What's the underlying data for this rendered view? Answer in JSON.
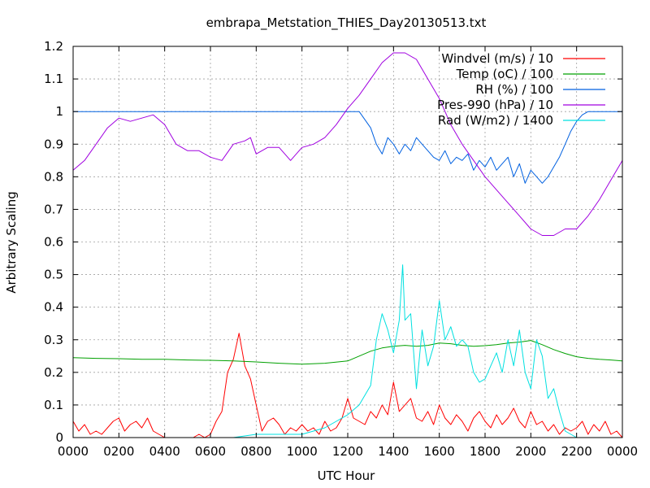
{
  "chart_data": {
    "type": "line",
    "title": "embrapa_Metstation_THIES_Day20130513.txt",
    "xlabel": "UTC Hour",
    "ylabel": "Arbitrary Scaling",
    "xlim": [
      0,
      24
    ],
    "ylim": [
      0,
      1.2
    ],
    "grid": true,
    "legend_position": "top-right",
    "x_ticks": [
      0,
      2,
      4,
      6,
      8,
      10,
      12,
      14,
      16,
      18,
      20,
      22,
      24
    ],
    "x_tick_labels": [
      "0000",
      "0200",
      "0400",
      "0600",
      "0800",
      "1000",
      "1200",
      "1400",
      "1600",
      "1800",
      "2000",
      "2200",
      "0000"
    ],
    "y_ticks": [
      0,
      0.1,
      0.2,
      0.3,
      0.4,
      0.5,
      0.6,
      0.7,
      0.8,
      0.9,
      1,
      1.1,
      1.2
    ],
    "y_tick_labels": [
      "0",
      "0.1",
      "0.2",
      "0.3",
      "0.4",
      "0.5",
      "0.6",
      "0.7",
      "0.8",
      "0.9",
      "1",
      "1.1",
      "1.2"
    ],
    "series": [
      {
        "name": "Windvel (m/s) / 10",
        "color": "#ff0000",
        "x": [
          0,
          0.25,
          0.5,
          0.75,
          1,
          1.25,
          1.5,
          1.75,
          2,
          2.25,
          2.5,
          2.75,
          3,
          3.25,
          3.5,
          3.75,
          4,
          4.25,
          4.5,
          4.75,
          5,
          5.25,
          5.5,
          5.75,
          6,
          6.25,
          6.5,
          6.75,
          7,
          7.25,
          7.5,
          7.75,
          8,
          8.25,
          8.5,
          8.75,
          9,
          9.25,
          9.5,
          9.75,
          10,
          10.25,
          10.5,
          10.75,
          11,
          11.25,
          11.5,
          11.75,
          12,
          12.25,
          12.5,
          12.75,
          13,
          13.25,
          13.5,
          13.75,
          14,
          14.25,
          14.5,
          14.75,
          15,
          15.25,
          15.5,
          15.75,
          16,
          16.25,
          16.5,
          16.75,
          17,
          17.25,
          17.5,
          17.75,
          18,
          18.25,
          18.5,
          18.75,
          19,
          19.25,
          19.5,
          19.75,
          20,
          20.25,
          20.5,
          20.75,
          21,
          21.25,
          21.5,
          21.75,
          22,
          22.25,
          22.5,
          22.75,
          23,
          23.25,
          23.5,
          23.75,
          24
        ],
        "y": [
          0.05,
          0.02,
          0.04,
          0.01,
          0.02,
          0.01,
          0.03,
          0.05,
          0.06,
          0.02,
          0.04,
          0.05,
          0.03,
          0.06,
          0.02,
          0.01,
          0,
          0,
          0,
          0,
          0,
          0,
          0.01,
          0,
          0.01,
          0.05,
          0.08,
          0.2,
          0.24,
          0.32,
          0.22,
          0.18,
          0.1,
          0.02,
          0.05,
          0.06,
          0.04,
          0.01,
          0.03,
          0.02,
          0.04,
          0.02,
          0.03,
          0.01,
          0.05,
          0.02,
          0.03,
          0.06,
          0.12,
          0.06,
          0.05,
          0.04,
          0.08,
          0.06,
          0.1,
          0.07,
          0.17,
          0.08,
          0.1,
          0.12,
          0.06,
          0.05,
          0.08,
          0.04,
          0.1,
          0.06,
          0.04,
          0.07,
          0.05,
          0.02,
          0.06,
          0.08,
          0.05,
          0.03,
          0.07,
          0.04,
          0.06,
          0.09,
          0.05,
          0.03,
          0.08,
          0.04,
          0.05,
          0.02,
          0.04,
          0.01,
          0.03,
          0.02,
          0.03,
          0.05,
          0.01,
          0.04,
          0.02,
          0.05,
          0.01,
          0.02,
          0
        ]
      },
      {
        "name": "Temp (oC) / 100",
        "color": "#00a000",
        "x": [
          0,
          1,
          2,
          3,
          4,
          5,
          6,
          7,
          8,
          9,
          10,
          11,
          12,
          12.5,
          13,
          13.5,
          14,
          14.5,
          15,
          15.5,
          16,
          16.5,
          17,
          17.5,
          18,
          18.5,
          19,
          19.5,
          20,
          20.5,
          21,
          21.5,
          22,
          22.5,
          23,
          23.5,
          24
        ],
        "y": [
          0.245,
          0.243,
          0.242,
          0.24,
          0.24,
          0.238,
          0.237,
          0.235,
          0.232,
          0.228,
          0.225,
          0.228,
          0.235,
          0.25,
          0.265,
          0.275,
          0.28,
          0.283,
          0.28,
          0.283,
          0.29,
          0.288,
          0.283,
          0.28,
          0.282,
          0.285,
          0.29,
          0.293,
          0.298,
          0.285,
          0.27,
          0.258,
          0.248,
          0.243,
          0.24,
          0.238,
          0.235
        ]
      },
      {
        "name": "RH (%) / 100",
        "color": "#0060e0",
        "x": [
          0,
          2,
          4,
          6,
          8,
          10,
          12,
          12.5,
          13,
          13.25,
          13.5,
          13.75,
          14,
          14.25,
          14.5,
          14.75,
          15,
          15.25,
          15.5,
          15.75,
          16,
          16.25,
          16.5,
          16.75,
          17,
          17.25,
          17.5,
          17.75,
          18,
          18.25,
          18.5,
          18.75,
          19,
          19.25,
          19.5,
          19.75,
          20,
          20.25,
          20.5,
          20.75,
          21,
          21.25,
          21.5,
          21.75,
          22,
          22.25,
          22.5,
          23,
          24
        ],
        "y": [
          1,
          1,
          1,
          1,
          1,
          1,
          1,
          1,
          0.95,
          0.9,
          0.87,
          0.92,
          0.9,
          0.87,
          0.9,
          0.88,
          0.92,
          0.9,
          0.88,
          0.86,
          0.85,
          0.88,
          0.84,
          0.86,
          0.85,
          0.87,
          0.82,
          0.85,
          0.83,
          0.86,
          0.82,
          0.84,
          0.86,
          0.8,
          0.84,
          0.78,
          0.82,
          0.8,
          0.78,
          0.8,
          0.83,
          0.86,
          0.9,
          0.94,
          0.97,
          0.99,
          1,
          1,
          1
        ]
      },
      {
        "name": "Pres-990 (hPa) / 10",
        "color": "#a000e0",
        "x": [
          0,
          0.5,
          1,
          1.5,
          2,
          2.5,
          3,
          3.5,
          4,
          4.5,
          5,
          5.5,
          6,
          6.5,
          7,
          7.5,
          7.75,
          8,
          8.5,
          9,
          9.5,
          10,
          10.5,
          11,
          11.5,
          12,
          12.5,
          13,
          13.5,
          14,
          14.5,
          15,
          15.5,
          16,
          16.5,
          17,
          17.5,
          18,
          18.5,
          19,
          19.5,
          20,
          20.5,
          21,
          21.5,
          22,
          22.5,
          23,
          23.5,
          24
        ],
        "y": [
          0.82,
          0.85,
          0.9,
          0.95,
          0.98,
          0.97,
          0.98,
          0.99,
          0.96,
          0.9,
          0.88,
          0.88,
          0.86,
          0.85,
          0.9,
          0.91,
          0.92,
          0.87,
          0.89,
          0.89,
          0.85,
          0.89,
          0.9,
          0.92,
          0.96,
          1.01,
          1.05,
          1.1,
          1.15,
          1.18,
          1.18,
          1.16,
          1.1,
          1.04,
          0.96,
          0.9,
          0.85,
          0.8,
          0.76,
          0.72,
          0.68,
          0.64,
          0.62,
          0.62,
          0.64,
          0.64,
          0.68,
          0.73,
          0.79,
          0.85
        ]
      },
      {
        "name": "Rad (W/m2) / 1400",
        "color": "#00e0e0",
        "x": [
          0,
          2,
          4,
          6,
          7,
          8,
          9,
          10,
          10.5,
          11,
          11.5,
          12,
          12.5,
          13,
          13.25,
          13.5,
          13.75,
          14,
          14.25,
          14.4,
          14.5,
          14.75,
          15,
          15.25,
          15.5,
          15.75,
          16,
          16.25,
          16.5,
          16.75,
          17,
          17.25,
          17.5,
          17.75,
          18,
          18.25,
          18.5,
          18.75,
          19,
          19.25,
          19.5,
          19.75,
          20,
          20.25,
          20.5,
          20.75,
          21,
          21.25,
          21.5,
          22,
          24
        ],
        "y": [
          0,
          0,
          0,
          0,
          0,
          0.01,
          0.01,
          0.01,
          0.02,
          0.03,
          0.05,
          0.07,
          0.1,
          0.16,
          0.3,
          0.38,
          0.33,
          0.26,
          0.36,
          0.53,
          0.36,
          0.38,
          0.15,
          0.33,
          0.22,
          0.28,
          0.42,
          0.3,
          0.34,
          0.28,
          0.3,
          0.28,
          0.2,
          0.17,
          0.18,
          0.22,
          0.26,
          0.2,
          0.3,
          0.22,
          0.33,
          0.2,
          0.15,
          0.3,
          0.25,
          0.12,
          0.15,
          0.08,
          0.02,
          0,
          0
        ]
      }
    ]
  }
}
